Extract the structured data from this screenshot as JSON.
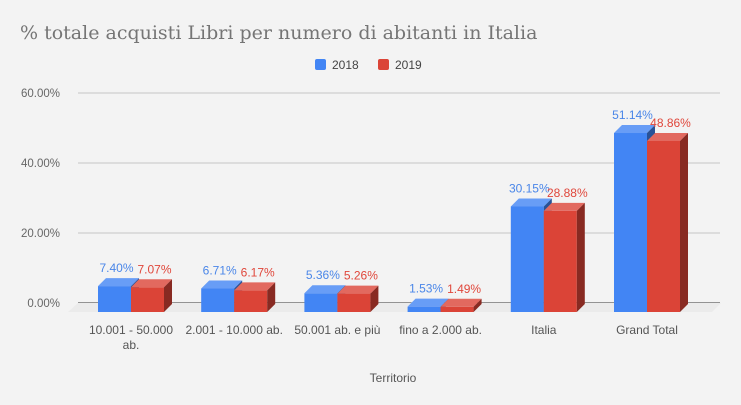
{
  "chart_data": {
    "type": "bar",
    "title": "% totale acquisti Libri per numero di abitanti in Italia",
    "xlabel": "Territorio",
    "ylabel": "",
    "ylim": [
      0,
      60
    ],
    "yticks": [
      "0.00%",
      "20.00%",
      "40.00%",
      "60.00%"
    ],
    "ytick_values": [
      0,
      20,
      40,
      60
    ],
    "grid": true,
    "legend_position": "top",
    "categories": [
      "10.001 - 50.000 ab.",
      "2.001 - 10.000 ab.",
      "50.001 ab. e più",
      "fino a 2.000 ab.",
      "Italia",
      "Grand Total"
    ],
    "category_lines": [
      [
        "10.001 - 50.000",
        "ab."
      ],
      [
        "2.001 - 10.000 ab."
      ],
      [
        "50.001 ab. e più"
      ],
      [
        "fino a 2.000 ab."
      ],
      [
        "Italia"
      ],
      [
        "Grand Total"
      ]
    ],
    "series": [
      {
        "name": "2018",
        "color": "#4285f4",
        "label_color": "#4a86e8",
        "values": [
          7.4,
          6.71,
          5.36,
          1.53,
          30.15,
          51.14
        ],
        "labels": [
          "7.40%",
          "6.71%",
          "5.36%",
          "1.53%",
          "30.15%",
          "51.14%"
        ]
      },
      {
        "name": "2019",
        "color": "#db4437",
        "label_color": "#e0473b",
        "values": [
          7.07,
          6.17,
          5.26,
          1.49,
          28.88,
          48.86
        ],
        "labels": [
          "7.07%",
          "6.17%",
          "5.26%",
          "1.49%",
          "28.88%",
          "48.86%"
        ]
      }
    ]
  }
}
